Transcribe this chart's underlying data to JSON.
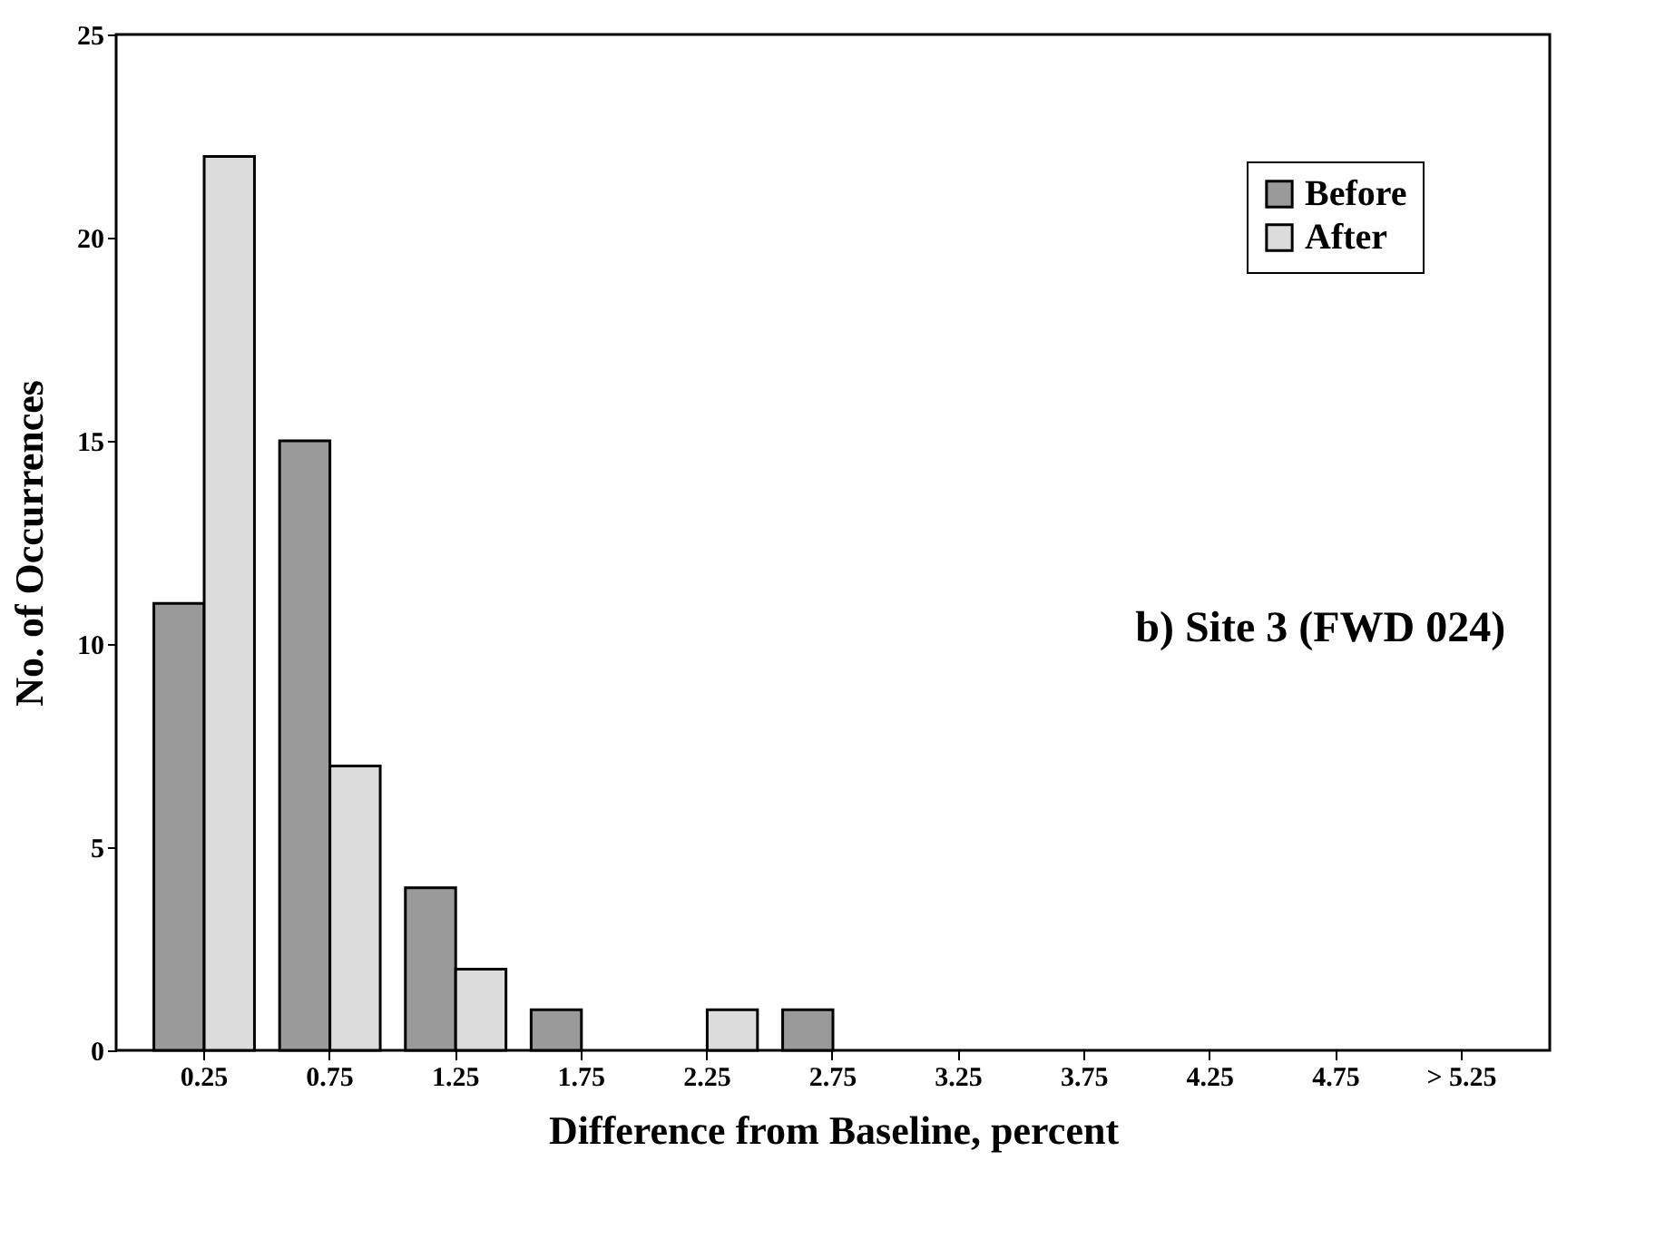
{
  "chart_data": {
    "type": "bar",
    "xlabel": "Difference from Baseline, percent",
    "ylabel": "No. of Occurrences",
    "categories": [
      "0.25",
      "0.75",
      "1.25",
      "1.75",
      "2.25",
      "2.75",
      "3.25",
      "3.75",
      "4.25",
      "4.75",
      "> 5.25"
    ],
    "series": [
      {
        "name": "Before",
        "color": "#9a9a9a",
        "values": [
          11,
          15,
          4,
          1,
          0,
          1,
          0,
          0,
          0,
          0,
          0
        ]
      },
      {
        "name": "After",
        "color": "#dcdcdc",
        "values": [
          22,
          7,
          2,
          0,
          1,
          0,
          0,
          0,
          0,
          0,
          0
        ]
      }
    ],
    "ylim": [
      0,
      25
    ],
    "yticks": [
      0,
      5,
      10,
      15,
      20,
      25
    ],
    "legend": "top right",
    "grid": false,
    "annotations": [
      "b) Site 3 (FWD 024)"
    ]
  }
}
